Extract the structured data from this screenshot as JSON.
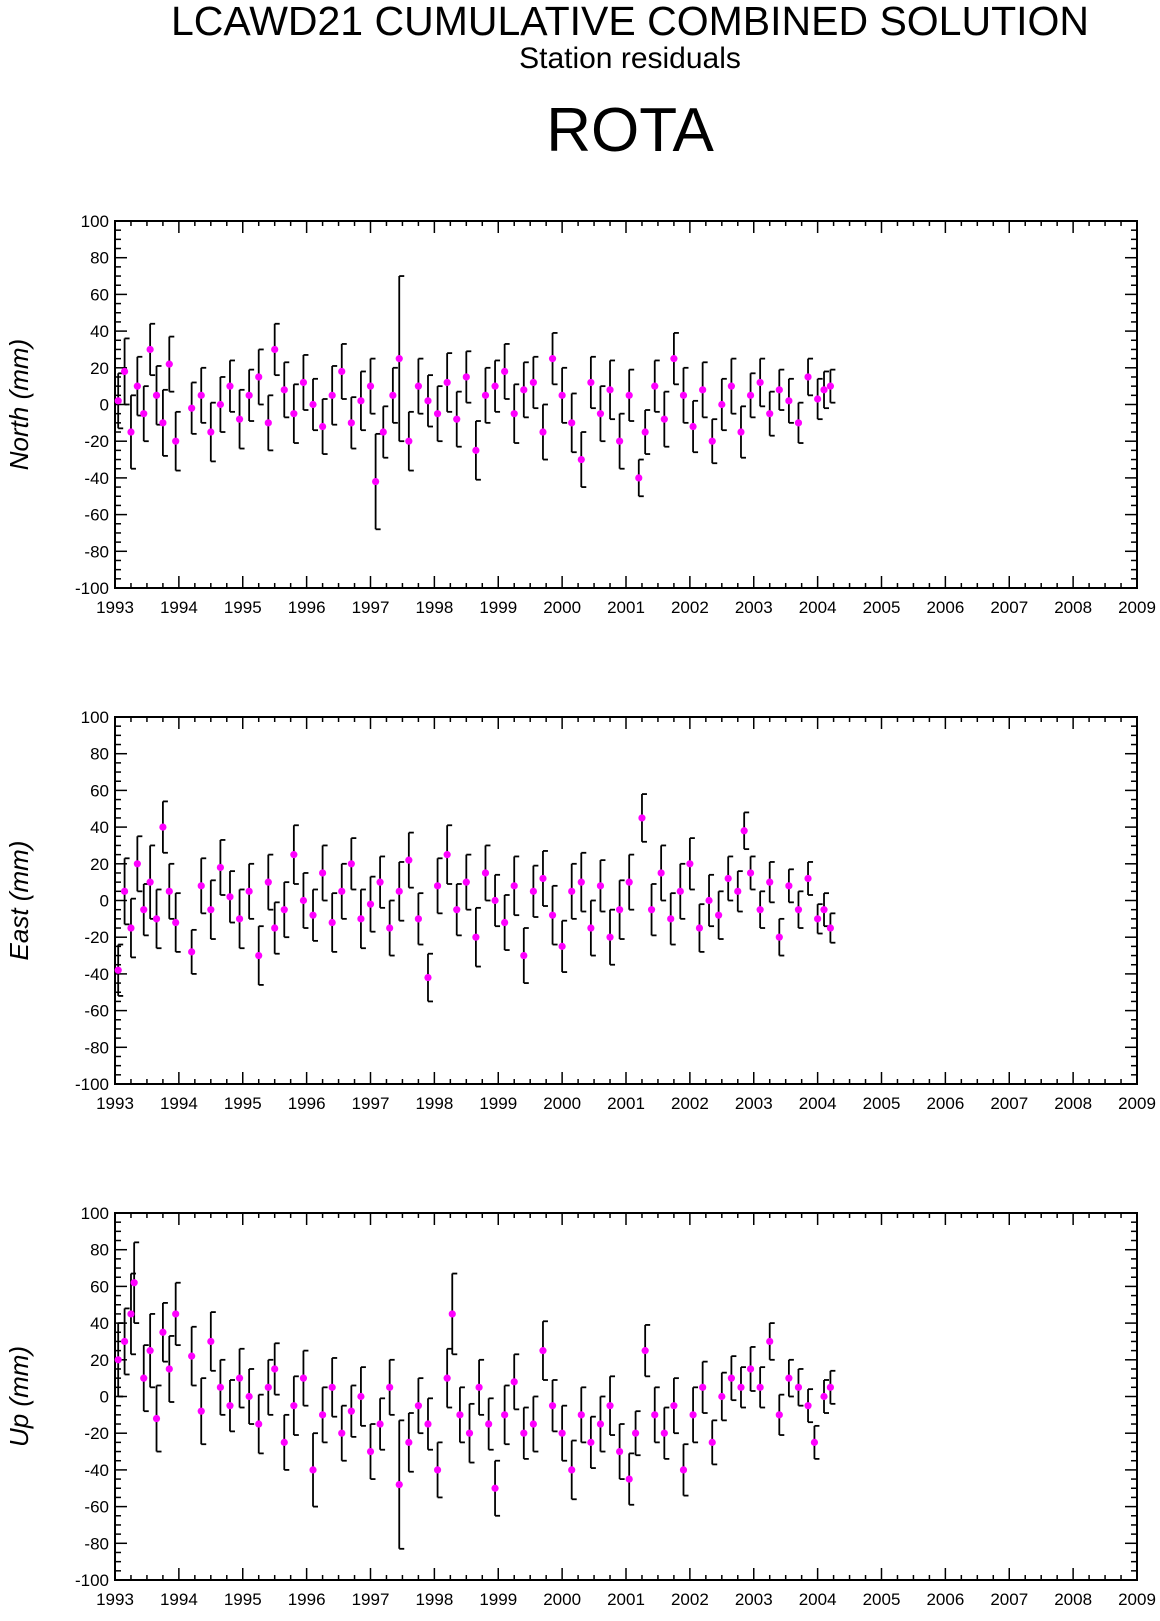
{
  "header": {
    "title": "LCAWD21 CUMULATIVE COMBINED SOLUTION",
    "subtitle": "Station residuals",
    "station": "ROTA"
  },
  "colors": {
    "point": "#ff00ff",
    "errorbar": "#000000",
    "axis": "#000000"
  },
  "chart_data": [
    {
      "type": "scatter",
      "ylabel": "North (mm)",
      "xlim": [
        1993,
        2009
      ],
      "ylim": [
        -100,
        100
      ],
      "x_ticks": [
        "1993",
        "1994",
        "1995",
        "1996",
        "1997",
        "1998",
        "1999",
        "2000",
        "2001",
        "2002",
        "2003",
        "2004",
        "2005",
        "2006",
        "2007",
        "2008",
        "2009"
      ],
      "y_ticks": [
        "-100",
        "-80",
        "-60",
        "-40",
        "-20",
        "0",
        "20",
        "40",
        "60",
        "80",
        "100"
      ],
      "grid": false,
      "series": [
        {
          "x": [
            1993.05,
            1993.15,
            1993.25,
            1993.35,
            1993.45,
            1993.55,
            1993.65,
            1993.75,
            1993.85,
            1993.95,
            1994.2,
            1994.35,
            1994.5,
            1994.65,
            1994.8,
            1994.95,
            1995.1,
            1995.25,
            1995.4,
            1995.5,
            1995.65,
            1995.8,
            1995.95,
            1996.1,
            1996.25,
            1996.4,
            1996.55,
            1996.7,
            1996.85,
            1997.0,
            1997.08,
            1997.2,
            1997.35,
            1997.45,
            1997.6,
            1997.75,
            1997.9,
            1998.05,
            1998.2,
            1998.35,
            1998.5,
            1998.65,
            1998.8,
            1998.95,
            1999.1,
            1999.25,
            1999.4,
            1999.55,
            1999.7,
            1999.85,
            2000.0,
            2000.15,
            2000.3,
            2000.45,
            2000.6,
            2000.75,
            2000.9,
            2001.05,
            2001.2,
            2001.3,
            2001.45,
            2001.6,
            2001.75,
            2001.9,
            2002.05,
            2002.2,
            2002.35,
            2002.5,
            2002.65,
            2002.8,
            2002.95,
            2003.1,
            2003.25,
            2003.4,
            2003.55,
            2003.7,
            2003.85,
            2004.0,
            2004.1,
            2004.2
          ],
          "y": [
            2,
            18,
            -15,
            10,
            -5,
            30,
            5,
            -10,
            22,
            -20,
            -2,
            5,
            -15,
            0,
            10,
            -8,
            5,
            15,
            -10,
            30,
            8,
            -5,
            12,
            0,
            -12,
            5,
            18,
            -10,
            2,
            10,
            -42,
            -15,
            5,
            25,
            -20,
            10,
            2,
            -5,
            12,
            -8,
            15,
            -25,
            5,
            10,
            18,
            -5,
            8,
            12,
            -15,
            25,
            5,
            -10,
            -30,
            12,
            -5,
            8,
            -20,
            5,
            -40,
            -15,
            10,
            -8,
            25,
            5,
            -12,
            8,
            -20,
            0,
            10,
            -15,
            5,
            12,
            -5,
            8,
            2,
            -10,
            15,
            3,
            8,
            10
          ],
          "err": [
            15,
            18,
            20,
            16,
            15,
            14,
            16,
            18,
            15,
            16,
            14,
            15,
            16,
            15,
            14,
            16,
            14,
            15,
            15,
            14,
            15,
            16,
            15,
            14,
            15,
            16,
            15,
            14,
            16,
            15,
            26,
            14,
            15,
            45,
            16,
            15,
            14,
            15,
            16,
            15,
            14,
            16,
            15,
            14,
            15,
            16,
            15,
            14,
            15,
            14,
            15,
            16,
            15,
            14,
            15,
            16,
            15,
            14,
            10,
            12,
            14,
            15,
            14,
            15,
            14,
            15,
            12,
            14,
            15,
            14,
            12,
            13,
            12,
            11,
            12,
            11,
            10,
            11,
            10,
            9
          ]
        }
      ]
    },
    {
      "type": "scatter",
      "ylabel": "East (mm)",
      "xlim": [
        1993,
        2009
      ],
      "ylim": [
        -100,
        100
      ],
      "x_ticks": [
        "1993",
        "1994",
        "1995",
        "1996",
        "1997",
        "1998",
        "1999",
        "2000",
        "2001",
        "2002",
        "2003",
        "2004",
        "2005",
        "2006",
        "2007",
        "2008",
        "2009"
      ],
      "y_ticks": [
        "-100",
        "-80",
        "-60",
        "-40",
        "-20",
        "0",
        "20",
        "40",
        "60",
        "80",
        "100"
      ],
      "grid": false,
      "series": [
        {
          "x": [
            1993.05,
            1993.15,
            1993.25,
            1993.35,
            1993.45,
            1993.55,
            1993.65,
            1993.75,
            1993.85,
            1993.95,
            1994.2,
            1994.35,
            1994.5,
            1994.65,
            1994.8,
            1994.95,
            1995.1,
            1995.25,
            1995.4,
            1995.5,
            1995.65,
            1995.8,
            1995.95,
            1996.1,
            1996.25,
            1996.4,
            1996.55,
            1996.7,
            1996.85,
            1997.0,
            1997.15,
            1997.3,
            1997.45,
            1997.6,
            1997.75,
            1997.9,
            1998.05,
            1998.2,
            1998.35,
            1998.5,
            1998.65,
            1998.8,
            1998.95,
            1999.1,
            1999.25,
            1999.4,
            1999.55,
            1999.7,
            1999.85,
            2000.0,
            2000.15,
            2000.3,
            2000.45,
            2000.6,
            2000.75,
            2000.9,
            2001.05,
            2001.25,
            2001.4,
            2001.55,
            2001.7,
            2001.85,
            2002.0,
            2002.15,
            2002.3,
            2002.45,
            2002.6,
            2002.75,
            2002.85,
            2002.95,
            2003.1,
            2003.25,
            2003.4,
            2003.55,
            2003.7,
            2003.85,
            2004.0,
            2004.1,
            2004.2
          ],
          "y": [
            -38,
            5,
            -15,
            20,
            -5,
            10,
            -10,
            40,
            5,
            -12,
            -28,
            8,
            -5,
            18,
            2,
            -10,
            5,
            -30,
            10,
            -15,
            -5,
            25,
            0,
            -8,
            15,
            -12,
            5,
            20,
            -10,
            -2,
            10,
            -15,
            5,
            22,
            -10,
            -42,
            8,
            25,
            -5,
            10,
            -20,
            15,
            0,
            -12,
            8,
            -30,
            5,
            12,
            -8,
            -25,
            5,
            10,
            -15,
            8,
            -20,
            -5,
            10,
            45,
            -5,
            15,
            -10,
            5,
            20,
            -15,
            0,
            -8,
            12,
            5,
            38,
            15,
            -5,
            10,
            -20,
            8,
            -5,
            12,
            -10,
            -5,
            -15
          ],
          "err": [
            14,
            18,
            16,
            15,
            14,
            20,
            16,
            14,
            15,
            16,
            12,
            15,
            16,
            15,
            14,
            16,
            15,
            16,
            15,
            14,
            15,
            16,
            15,
            14,
            15,
            16,
            15,
            14,
            16,
            15,
            14,
            15,
            16,
            15,
            14,
            13,
            15,
            16,
            14,
            15,
            16,
            15,
            14,
            15,
            16,
            15,
            14,
            15,
            16,
            14,
            15,
            16,
            15,
            14,
            15,
            16,
            15,
            13,
            14,
            15,
            14,
            15,
            14,
            13,
            14,
            13,
            12,
            11,
            10,
            9,
            10,
            11,
            10,
            9,
            10,
            9,
            8,
            9,
            8
          ]
        }
      ]
    },
    {
      "type": "scatter",
      "ylabel": "Up (mm)",
      "xlim": [
        1993,
        2009
      ],
      "ylim": [
        -100,
        100
      ],
      "x_ticks": [
        "1993",
        "1994",
        "1995",
        "1996",
        "1997",
        "1998",
        "1999",
        "2000",
        "2001",
        "2002",
        "2003",
        "2004",
        "2005",
        "2006",
        "2007",
        "2008",
        "2009"
      ],
      "y_ticks": [
        "-100",
        "-80",
        "-60",
        "-40",
        "-20",
        "0",
        "20",
        "40",
        "60",
        "80",
        "100"
      ],
      "grid": false,
      "series": [
        {
          "x": [
            1993.05,
            1993.15,
            1993.25,
            1993.3,
            1993.45,
            1993.55,
            1993.65,
            1993.75,
            1993.85,
            1993.95,
            1994.2,
            1994.35,
            1994.5,
            1994.65,
            1994.8,
            1994.95,
            1995.1,
            1995.25,
            1995.4,
            1995.5,
            1995.65,
            1995.8,
            1995.95,
            1996.1,
            1996.25,
            1996.4,
            1996.55,
            1996.7,
            1996.85,
            1997.0,
            1997.15,
            1997.3,
            1997.45,
            1997.6,
            1997.75,
            1997.9,
            1998.05,
            1998.2,
            1998.28,
            1998.4,
            1998.55,
            1998.7,
            1998.85,
            1998.95,
            1999.1,
            1999.25,
            1999.4,
            1999.55,
            1999.7,
            1999.85,
            2000.0,
            2000.15,
            2000.3,
            2000.45,
            2000.6,
            2000.75,
            2000.9,
            2001.05,
            2001.15,
            2001.3,
            2001.45,
            2001.6,
            2001.75,
            2001.9,
            2002.05,
            2002.2,
            2002.35,
            2002.5,
            2002.65,
            2002.8,
            2002.95,
            2003.1,
            2003.25,
            2003.4,
            2003.55,
            2003.7,
            2003.85,
            2003.95,
            2004.1,
            2004.2
          ],
          "y": [
            20,
            30,
            45,
            62,
            10,
            25,
            -12,
            35,
            15,
            45,
            22,
            -8,
            30,
            5,
            -5,
            10,
            0,
            -15,
            5,
            15,
            -25,
            -5,
            10,
            -40,
            -10,
            5,
            -20,
            -8,
            0,
            -30,
            -15,
            5,
            -48,
            -25,
            -5,
            -15,
            -40,
            10,
            45,
            -10,
            -20,
            5,
            -15,
            -50,
            -10,
            8,
            -20,
            -15,
            25,
            -5,
            -20,
            -40,
            -10,
            -25,
            -15,
            -5,
            -30,
            -45,
            -20,
            25,
            -10,
            -20,
            -5,
            -40,
            -10,
            5,
            -25,
            0,
            10,
            5,
            15,
            5,
            30,
            -10,
            10,
            5,
            -5,
            -25,
            0,
            5
          ],
          "err": [
            20,
            18,
            22,
            22,
            18,
            20,
            18,
            16,
            18,
            17,
            16,
            18,
            16,
            15,
            14,
            16,
            15,
            16,
            15,
            14,
            15,
            16,
            15,
            20,
            15,
            16,
            15,
            14,
            16,
            15,
            14,
            15,
            35,
            16,
            15,
            14,
            15,
            16,
            22,
            15,
            16,
            15,
            14,
            15,
            16,
            15,
            14,
            15,
            16,
            14,
            15,
            16,
            15,
            14,
            15,
            16,
            15,
            14,
            12,
            14,
            15,
            14,
            15,
            14,
            15,
            14,
            12,
            13,
            12,
            11,
            12,
            11,
            10,
            11,
            10,
            10,
            9,
            9,
            9,
            9
          ]
        }
      ]
    }
  ]
}
